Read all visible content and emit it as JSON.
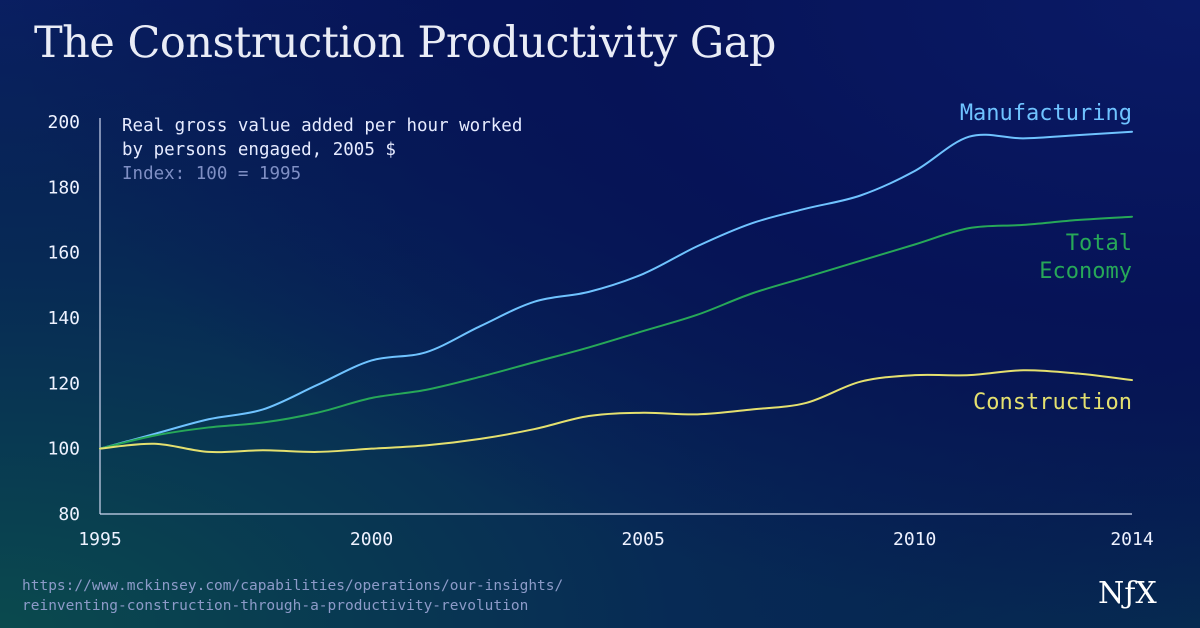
{
  "title": "The Construction Productivity Gap",
  "subtitle": {
    "line1": "Real gross value added per hour worked",
    "line2": "by persons engaged, 2005 $",
    "line3": "Index: 100 = 1995"
  },
  "source": {
    "line1": "https://www.mckinsey.com/capabilities/operations/our-insights/",
    "line2": "reinventing-construction-through-a-productivity-revolution"
  },
  "logo": "NƒX",
  "colors": {
    "manufacturing": "#6fc3ff",
    "total_economy": "#27a858",
    "construction": "#e4e06f",
    "axis": "#cfd7f0",
    "tick_text": "#eef2ff"
  },
  "chart_data": {
    "type": "line",
    "title": "The Construction Productivity Gap",
    "xlabel": "",
    "ylabel": "",
    "xlim": [
      1995,
      2014
    ],
    "ylim": [
      80,
      200
    ],
    "x_ticks": [
      1995,
      2000,
      2005,
      2010,
      2014
    ],
    "y_ticks": [
      80,
      100,
      120,
      140,
      160,
      180,
      200
    ],
    "legend": "inline-right",
    "grid": false,
    "x": [
      1995,
      1996,
      1997,
      1998,
      1999,
      2000,
      2001,
      2002,
      2003,
      2004,
      2005,
      2006,
      2007,
      2008,
      2009,
      2010,
      2011,
      2012,
      2013,
      2014
    ],
    "series": [
      {
        "name": "Manufacturing",
        "label_lines": [
          "Manufacturing"
        ],
        "values": [
          100,
          104.5,
          109,
          112,
          119.5,
          127,
          129.5,
          137.5,
          145,
          148,
          153.5,
          162,
          169,
          173.5,
          177.5,
          185,
          195.5,
          195,
          196,
          197
        ]
      },
      {
        "name": "Total Economy",
        "label_lines": [
          "Total",
          "Economy"
        ],
        "values": [
          100,
          104,
          106.5,
          108,
          111,
          115.5,
          118,
          122,
          126.5,
          131,
          136,
          141,
          147.5,
          152.5,
          157.5,
          162.5,
          167.5,
          168.5,
          170,
          171
        ]
      },
      {
        "name": "Construction",
        "label_lines": [
          "Construction"
        ],
        "values": [
          100,
          101.5,
          99,
          99.5,
          99,
          100,
          101,
          103,
          106,
          110,
          111,
          110.5,
          112,
          114,
          120.5,
          122.5,
          122.5,
          124,
          123,
          121
        ]
      }
    ]
  }
}
